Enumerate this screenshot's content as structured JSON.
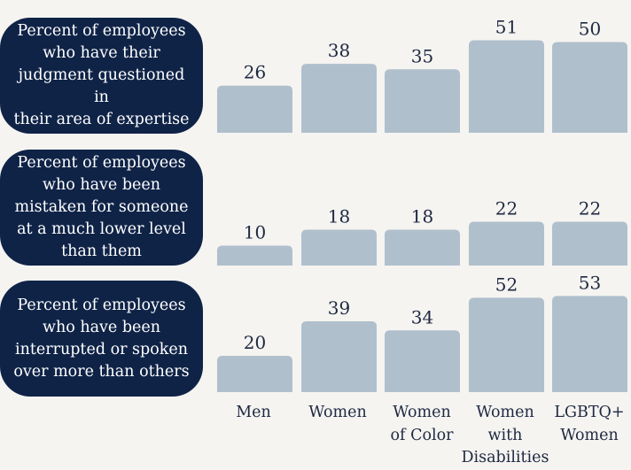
{
  "chart_data": {
    "type": "bar",
    "categories": [
      "Men",
      "Women",
      "Women\nof Color",
      "Women\nwith\nDisabilities",
      "LGBTQ+\nWomen"
    ],
    "series": [
      {
        "name": "Percent of employees\nwho have their\njudgment questioned in\ntheir area of expertise",
        "values": [
          26,
          38,
          35,
          51,
          50
        ]
      },
      {
        "name": "Percent of employees\nwho have been\nmistaken for someone\nat a much lower level\nthan them",
        "values": [
          10,
          18,
          18,
          22,
          22
        ]
      },
      {
        "name": "Percent of employees\nwho have been\ninterrupted or spoken\nover more than others",
        "values": [
          20,
          39,
          34,
          52,
          53
        ]
      }
    ],
    "colors": {
      "bar": "#b0bfcc",
      "label_box": "#0f2347",
      "background": "#f5f4f1",
      "text": "#1e2840"
    }
  }
}
